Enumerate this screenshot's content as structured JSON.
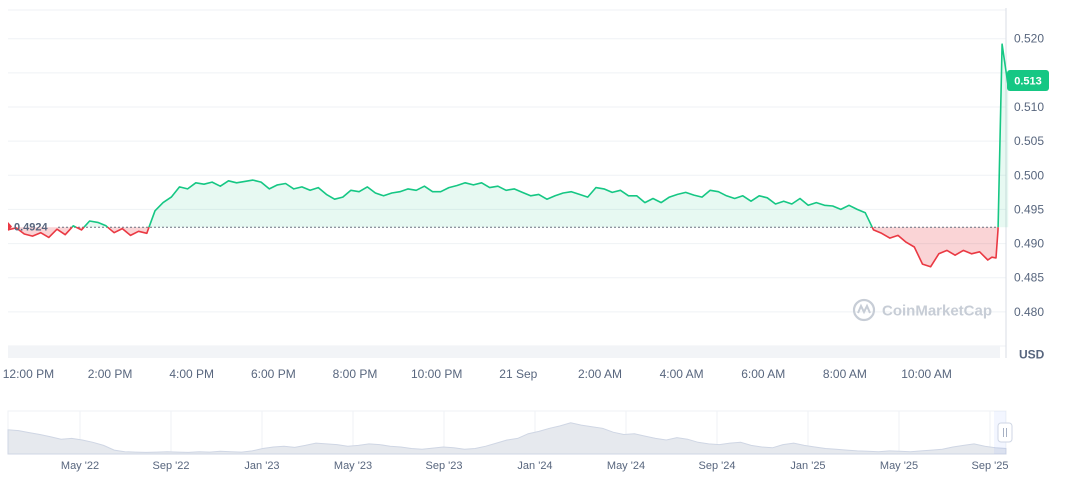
{
  "chart_data": {
    "type": "area",
    "unit": "USD",
    "reference_value": 0.4924,
    "reference_label": "0.4924",
    "current_price_label": "0.513",
    "watermark": "CoinMarketCap",
    "ylim": [
      0.475,
      0.5245
    ],
    "y_ticks": [
      {
        "value": 0.52,
        "label": "0.520"
      },
      {
        "value": 0.515,
        "label": ""
      },
      {
        "value": 0.51,
        "label": "0.510"
      },
      {
        "value": 0.505,
        "label": "0.505"
      },
      {
        "value": 0.5,
        "label": "0.500"
      },
      {
        "value": 0.495,
        "label": "0.495"
      },
      {
        "value": 0.49,
        "label": "0.490"
      },
      {
        "value": 0.485,
        "label": "0.485"
      },
      {
        "value": 0.48,
        "label": "0.480"
      },
      {
        "value": 0.475,
        "label": ""
      }
    ],
    "x_start": "11:30 AM",
    "x_end": "11:45 AM (21 Sep)",
    "x_ticks": [
      {
        "hours": 0.5,
        "label": "12:00 PM"
      },
      {
        "hours": 2.5,
        "label": "2:00 PM"
      },
      {
        "hours": 4.5,
        "label": "4:00 PM"
      },
      {
        "hours": 6.5,
        "label": "6:00 PM"
      },
      {
        "hours": 8.5,
        "label": "8:00 PM"
      },
      {
        "hours": 10.5,
        "label": "10:00 PM"
      },
      {
        "hours": 12.5,
        "label": "21 Sep"
      },
      {
        "hours": 14.5,
        "label": "2:00 AM"
      },
      {
        "hours": 16.5,
        "label": "4:00 AM"
      },
      {
        "hours": 18.5,
        "label": "6:00 AM"
      },
      {
        "hours": 20.5,
        "label": "8:00 AM"
      },
      {
        "hours": 22.5,
        "label": "10:00 AM"
      }
    ],
    "x_hours_total": 24.25,
    "series": [
      {
        "points": [
          [
            0.0,
            0.492
          ],
          [
            0.2,
            0.4923
          ],
          [
            0.4,
            0.4914
          ],
          [
            0.6,
            0.4911
          ],
          [
            0.8,
            0.4916
          ],
          [
            1.0,
            0.4909
          ],
          [
            1.2,
            0.4921
          ],
          [
            1.4,
            0.4913
          ],
          [
            1.6,
            0.4926
          ],
          [
            1.8,
            0.492
          ],
          [
            2.0,
            0.4933
          ],
          [
            2.2,
            0.4931
          ],
          [
            2.4,
            0.4926
          ],
          [
            2.6,
            0.4916
          ],
          [
            2.8,
            0.4922
          ],
          [
            3.0,
            0.4912
          ],
          [
            3.2,
            0.4918
          ],
          [
            3.4,
            0.4915
          ],
          [
            3.6,
            0.4948
          ],
          [
            3.8,
            0.496
          ],
          [
            4.0,
            0.4968
          ],
          [
            4.2,
            0.4983
          ],
          [
            4.4,
            0.498
          ],
          [
            4.6,
            0.4989
          ],
          [
            4.8,
            0.4987
          ],
          [
            5.0,
            0.499
          ],
          [
            5.2,
            0.4984
          ],
          [
            5.4,
            0.4992
          ],
          [
            5.6,
            0.4989
          ],
          [
            5.8,
            0.4991
          ],
          [
            6.0,
            0.4993
          ],
          [
            6.2,
            0.499
          ],
          [
            6.4,
            0.498
          ],
          [
            6.6,
            0.4986
          ],
          [
            6.8,
            0.4988
          ],
          [
            7.0,
            0.498
          ],
          [
            7.2,
            0.4983
          ],
          [
            7.4,
            0.4978
          ],
          [
            7.6,
            0.4982
          ],
          [
            7.8,
            0.4972
          ],
          [
            8.0,
            0.4965
          ],
          [
            8.2,
            0.4968
          ],
          [
            8.4,
            0.4978
          ],
          [
            8.6,
            0.4976
          ],
          [
            8.8,
            0.4983
          ],
          [
            9.0,
            0.4974
          ],
          [
            9.2,
            0.497
          ],
          [
            9.4,
            0.4974
          ],
          [
            9.6,
            0.4976
          ],
          [
            9.8,
            0.498
          ],
          [
            10.0,
            0.4978
          ],
          [
            10.2,
            0.4984
          ],
          [
            10.4,
            0.4976
          ],
          [
            10.6,
            0.4976
          ],
          [
            10.8,
            0.4982
          ],
          [
            11.0,
            0.4985
          ],
          [
            11.2,
            0.4989
          ],
          [
            11.4,
            0.4986
          ],
          [
            11.6,
            0.4989
          ],
          [
            11.8,
            0.4982
          ],
          [
            12.0,
            0.4984
          ],
          [
            12.2,
            0.4978
          ],
          [
            12.4,
            0.498
          ],
          [
            12.6,
            0.4975
          ],
          [
            12.8,
            0.497
          ],
          [
            13.0,
            0.4972
          ],
          [
            13.2,
            0.4965
          ],
          [
            13.4,
            0.497
          ],
          [
            13.6,
            0.4974
          ],
          [
            13.8,
            0.4976
          ],
          [
            14.0,
            0.4972
          ],
          [
            14.2,
            0.4968
          ],
          [
            14.4,
            0.4982
          ],
          [
            14.6,
            0.498
          ],
          [
            14.8,
            0.4975
          ],
          [
            15.0,
            0.4978
          ],
          [
            15.2,
            0.497
          ],
          [
            15.4,
            0.497
          ],
          [
            15.6,
            0.496
          ],
          [
            15.8,
            0.4966
          ],
          [
            16.0,
            0.496
          ],
          [
            16.2,
            0.4968
          ],
          [
            16.4,
            0.4972
          ],
          [
            16.6,
            0.4975
          ],
          [
            16.8,
            0.4971
          ],
          [
            17.0,
            0.4968
          ],
          [
            17.2,
            0.4978
          ],
          [
            17.4,
            0.4976
          ],
          [
            17.6,
            0.497
          ],
          [
            17.8,
            0.4966
          ],
          [
            18.0,
            0.497
          ],
          [
            18.2,
            0.4962
          ],
          [
            18.4,
            0.497
          ],
          [
            18.6,
            0.4967
          ],
          [
            18.8,
            0.4958
          ],
          [
            19.0,
            0.4962
          ],
          [
            19.2,
            0.4958
          ],
          [
            19.4,
            0.4966
          ],
          [
            19.6,
            0.4956
          ],
          [
            19.8,
            0.496
          ],
          [
            20.0,
            0.4956
          ],
          [
            20.2,
            0.4955
          ],
          [
            20.4,
            0.495
          ],
          [
            20.6,
            0.4956
          ],
          [
            20.8,
            0.495
          ],
          [
            21.0,
            0.4945
          ],
          [
            21.2,
            0.492
          ],
          [
            21.4,
            0.4915
          ],
          [
            21.6,
            0.4908
          ],
          [
            21.8,
            0.4912
          ],
          [
            22.0,
            0.4902
          ],
          [
            22.2,
            0.4895
          ],
          [
            22.4,
            0.487
          ],
          [
            22.6,
            0.4866
          ],
          [
            22.8,
            0.4885
          ],
          [
            23.0,
            0.489
          ],
          [
            23.2,
            0.4883
          ],
          [
            23.4,
            0.489
          ],
          [
            23.6,
            0.4885
          ],
          [
            23.8,
            0.4888
          ],
          [
            24.0,
            0.4876
          ],
          [
            24.1,
            0.488
          ],
          [
            24.2,
            0.4879
          ],
          [
            24.25,
            0.492
          ],
          [
            24.35,
            0.5192
          ],
          [
            24.5,
            0.513
          ]
        ]
      }
    ]
  },
  "navigator": {
    "labels": [
      "May '22",
      "Sep '22",
      "Jan '23",
      "May '23",
      "Sep '23",
      "Jan '24",
      "May '24",
      "Sep '24",
      "Jan '25",
      "May '25",
      "Sep '25"
    ],
    "values": [
      0.62,
      0.6,
      0.55,
      0.5,
      0.44,
      0.38,
      0.4,
      0.36,
      0.3,
      0.22,
      0.1,
      0.06,
      0.05,
      0.04,
      0.05,
      0.06,
      0.05,
      0.04,
      0.06,
      0.05,
      0.07,
      0.06,
      0.05,
      0.08,
      0.14,
      0.18,
      0.2,
      0.17,
      0.22,
      0.28,
      0.26,
      0.24,
      0.2,
      0.22,
      0.26,
      0.24,
      0.2,
      0.18,
      0.14,
      0.12,
      0.15,
      0.18,
      0.16,
      0.12,
      0.14,
      0.2,
      0.28,
      0.36,
      0.4,
      0.52,
      0.58,
      0.66,
      0.72,
      0.8,
      0.74,
      0.7,
      0.66,
      0.56,
      0.5,
      0.52,
      0.46,
      0.4,
      0.36,
      0.42,
      0.38,
      0.3,
      0.26,
      0.24,
      0.28,
      0.3,
      0.22,
      0.18,
      0.16,
      0.24,
      0.28,
      0.22,
      0.18,
      0.14,
      0.12,
      0.1,
      0.08,
      0.07,
      0.06,
      0.08,
      0.07,
      0.06,
      0.08,
      0.1,
      0.12,
      0.18,
      0.22,
      0.26,
      0.2,
      0.16,
      0.14
    ]
  },
  "colors": {
    "up": "#16c784",
    "down": "#ea3943",
    "up_fill": "rgba(22,199,132,0.10)",
    "down_fill": "rgba(234,57,67,0.22)",
    "grid": "#eff2f5",
    "axis_text": "#58667e",
    "nav_fill": "#e6e9ee",
    "nav_line": "#cfd6e4"
  }
}
